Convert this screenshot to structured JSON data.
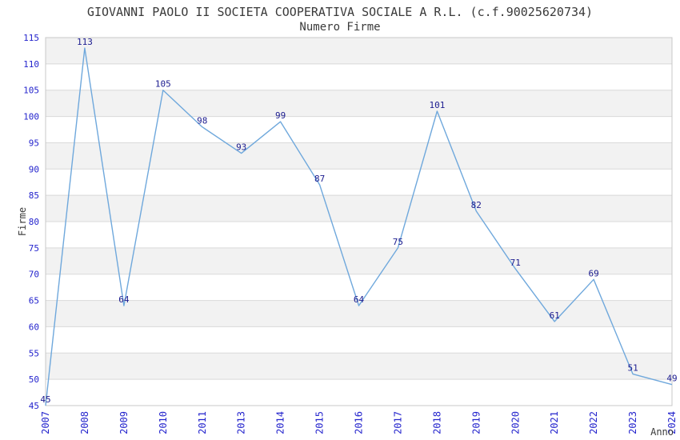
{
  "chart_data": {
    "type": "line",
    "title": "GIOVANNI PAOLO II SOCIETA COOPERATIVA SOCIALE A R.L. (c.f.90025620734)",
    "subtitle": "Numero Firme",
    "xlabel": "Anno",
    "ylabel": "Firme",
    "categories": [
      "2007",
      "2008",
      "2009",
      "2010",
      "2011",
      "2013",
      "2014",
      "2015",
      "2016",
      "2017",
      "2018",
      "2019",
      "2020",
      "2021",
      "2022",
      "2023",
      "2024"
    ],
    "values": [
      45,
      113,
      64,
      105,
      98,
      93,
      99,
      87,
      64,
      75,
      101,
      82,
      71,
      61,
      69,
      51,
      49
    ],
    "ylim": [
      45,
      115
    ],
    "ytick_step": 5,
    "grid": true,
    "legend": false,
    "band_fill": "alternating",
    "colors": {
      "line": "#6fa8dc",
      "data_label": "#1c1c8f",
      "tick_label": "#2424cd",
      "axis_label": "#3a3a3a",
      "title": "#3a3a3a",
      "band": "#f2f2f2",
      "gridline": "#d9d9d9",
      "border": "#c8c8c8",
      "background": "#ffffff"
    }
  }
}
